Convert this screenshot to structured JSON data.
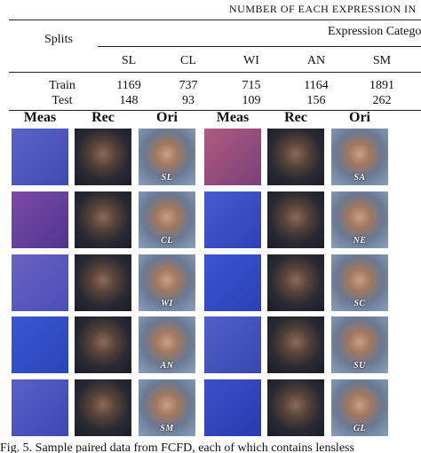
{
  "table": {
    "caption": "NUMBER OF EACH EXPRESSION IN",
    "splits_label": "Splits",
    "header_group": "Expression Catego",
    "columns": [
      "SL",
      "CL",
      "WI",
      "AN",
      "SM"
    ],
    "rows": [
      [
        "Train",
        1169,
        737,
        715,
        1164,
        1891
      ],
      [
        "Test",
        148,
        93,
        109,
        156,
        262
      ]
    ]
  },
  "figure": {
    "headers": [
      "Meas",
      "Rec",
      "Ori",
      "Meas",
      "Rec",
      "Ori"
    ],
    "labels": [
      "SL",
      "SA",
      "CL",
      "NE",
      "WI",
      "SC",
      "AN",
      "SU",
      "SM",
      "GL"
    ],
    "caption": "Fig. 5.   Sample paired data from FCFD, each of which contains lensless"
  }
}
